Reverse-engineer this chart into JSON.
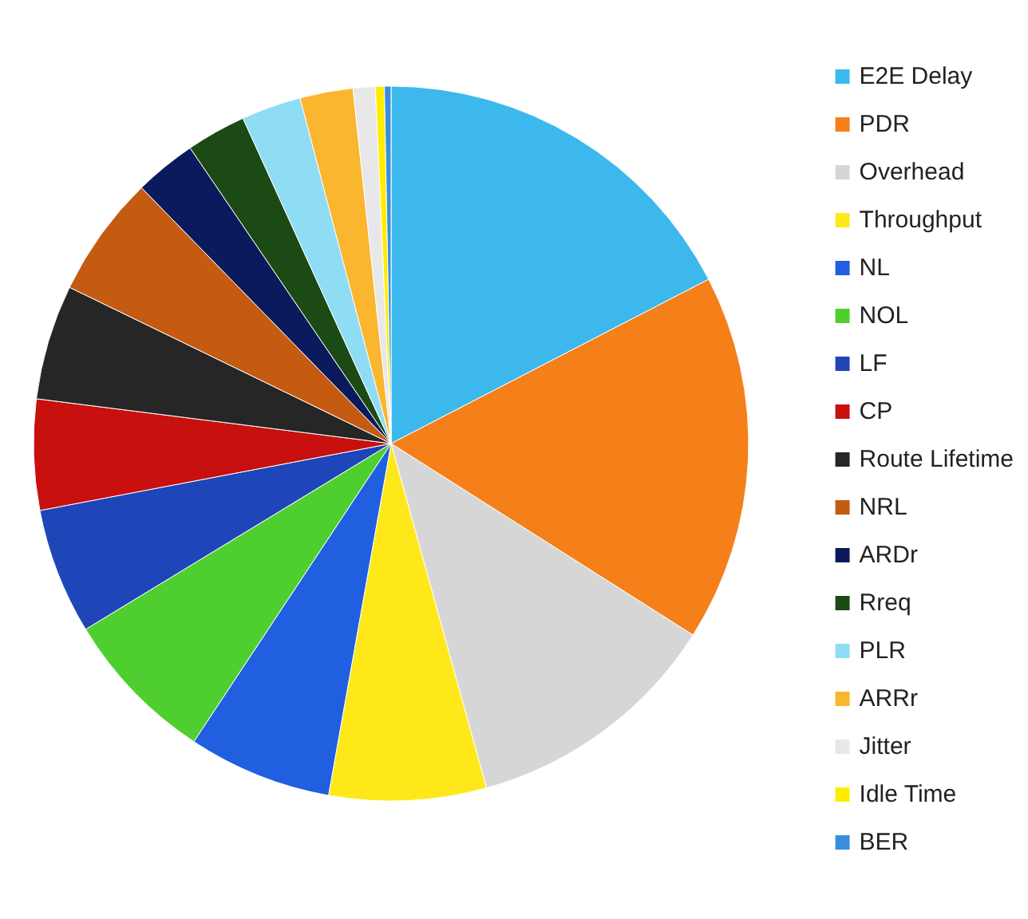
{
  "chart_data": {
    "type": "pie",
    "categories": [
      "E2E Delay",
      "PDR",
      "Overhead",
      "Throughput",
      "NL",
      "NOL",
      "LF",
      "CP",
      "Route Lifetime",
      "NRL",
      "ARDr",
      "Rreq",
      "PLR",
      "ARRr",
      "Jitter",
      "Idle Time",
      "BER"
    ],
    "values": [
      17.4,
      16.6,
      11.7,
      7.1,
      6.5,
      7.0,
      5.7,
      5.0,
      5.2,
      5.5,
      2.8,
      2.7,
      2.7,
      2.4,
      1.0,
      0.4,
      0.3
    ],
    "colors": [
      "#3db8ec",
      "#f5801a",
      "#d6d6d6",
      "#ffe81a",
      "#1f5fe0",
      "#4fcf2f",
      "#1f46b8",
      "#c8100f",
      "#262626",
      "#c55a11",
      "#0b1a5c",
      "#1c4a14",
      "#8fdcf5",
      "#f9b62e",
      "#e8e8e8",
      "#ffed00",
      "#3a8fdc"
    ],
    "legend": "right"
  }
}
